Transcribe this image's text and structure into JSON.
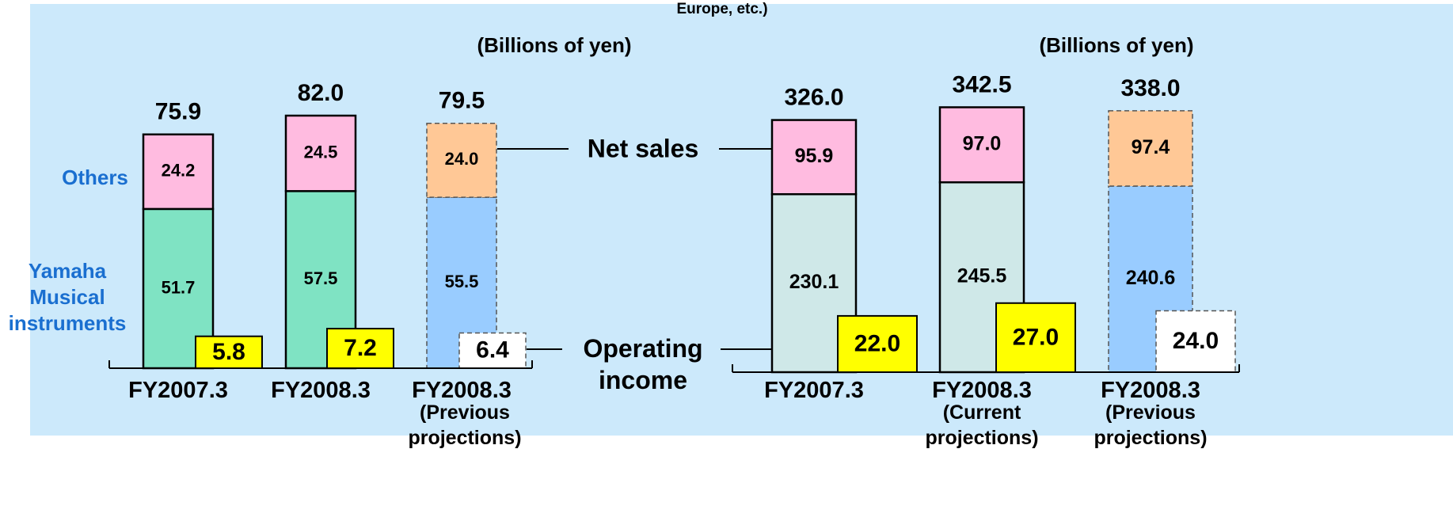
{
  "header_fragment": "Europe, etc.)",
  "annotations": {
    "net_sales": "Net sales",
    "operating_income": "Operating income"
  },
  "chart_data": [
    {
      "type": "bar",
      "stacked": true,
      "unit_label": "(Billions of yen)",
      "categories": [
        "FY2007.3",
        "FY2008.3",
        "FY2008.3"
      ],
      "category_notes": [
        null,
        null,
        "(Previous projections)"
      ],
      "dashed": [
        false,
        false,
        true
      ],
      "ylim": [
        0,
        100
      ],
      "y2lim": [
        0,
        56
      ],
      "series": [
        {
          "name": "Yamaha Musical instruments",
          "colors": [
            "#7fe3c3",
            "#7fe3c3",
            "#99ccff"
          ],
          "values": [
            51.7,
            57.5,
            55.5
          ],
          "value_labels": [
            "51.7",
            "57.5",
            "55.5"
          ]
        },
        {
          "name": "Others",
          "colors": [
            "#ffbbe0",
            "#ffbbe0",
            "#ffc896"
          ],
          "values": [
            24.2,
            24.5,
            24.0
          ],
          "value_labels": [
            "24.2",
            "24.5",
            "24.0"
          ]
        }
      ],
      "totals": {
        "values": [
          75.9,
          82.0,
          79.5
        ],
        "value_labels": [
          "75.9",
          "82.0",
          "79.5"
        ]
      },
      "operating_income": {
        "axis": "y2",
        "colors": [
          "#ffff00",
          "#ffff00",
          "#ffffff"
        ],
        "values": [
          5.8,
          7.2,
          6.4
        ],
        "value_labels": [
          "5.8",
          "7.2",
          "6.4"
        ]
      }
    },
    {
      "type": "bar",
      "stacked": true,
      "unit_label": "(Billions of yen)",
      "categories": [
        "FY2007.3",
        "FY2008.3",
        "FY2008.3"
      ],
      "category_notes": [
        null,
        "(Current projections)",
        "(Previous projections)"
      ],
      "dashed": [
        false,
        false,
        true
      ],
      "ylim": [
        0,
        430
      ],
      "y2lim": [
        0,
        130
      ],
      "series": [
        {
          "colors": [
            "#cfe8e8",
            "#cfe8e8",
            "#99ccff"
          ],
          "values": [
            230.1,
            245.5,
            240.6
          ],
          "value_labels": [
            "230.1",
            "245.5",
            "240.6"
          ]
        },
        {
          "colors": [
            "#ffbbe0",
            "#ffbbe0",
            "#ffc896"
          ],
          "values": [
            95.9,
            97.0,
            97.4
          ],
          "value_labels": [
            "95.9",
            "97.0",
            "97.4"
          ]
        }
      ],
      "totals": {
        "values": [
          326.0,
          342.5,
          338.0
        ],
        "value_labels": [
          "326.0",
          "342.5",
          "338.0"
        ]
      },
      "operating_income": {
        "axis": "y2",
        "colors": [
          "#ffff00",
          "#ffff00",
          "#ffffff"
        ],
        "values": [
          22.0,
          27.0,
          24.0
        ],
        "value_labels": [
          "22.0",
          "27.0",
          "24.0"
        ]
      }
    }
  ]
}
